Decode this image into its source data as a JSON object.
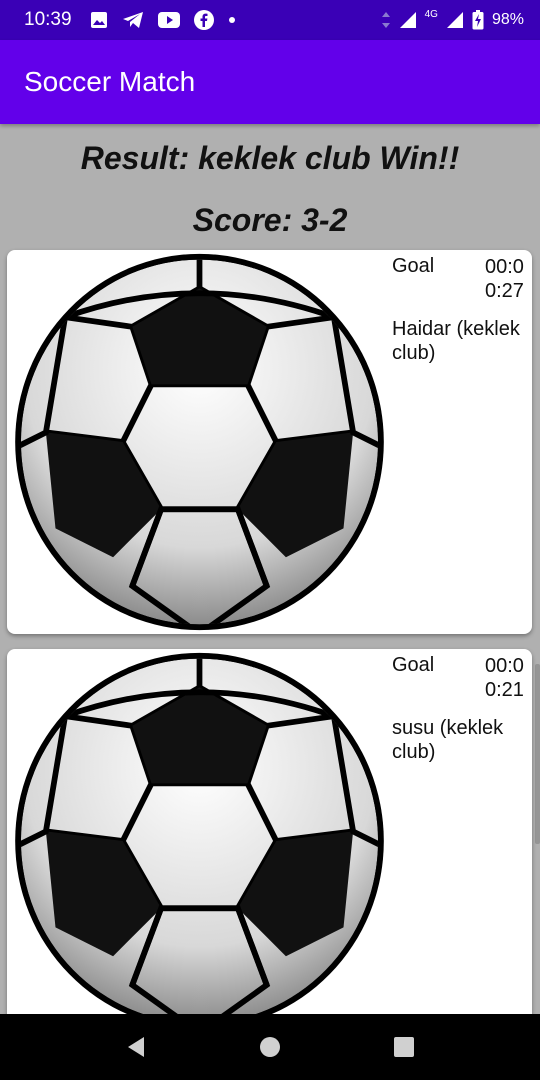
{
  "status_bar": {
    "time": "10:39",
    "network": "4G",
    "battery": "98%",
    "icons": [
      "image-icon",
      "telegram-icon",
      "youtube-icon",
      "facebook-icon",
      "dot-icon",
      "data-arrows-icon",
      "signal-icon",
      "signal-4g-icon",
      "battery-charging-icon"
    ]
  },
  "app_bar": {
    "title": "Soccer Match"
  },
  "summary": {
    "result": "Result: keklek club Win!!",
    "score": "Score: 3-2"
  },
  "events": [
    {
      "type": "Goal",
      "time": "00:00:27",
      "player": "Haidar (keklek club)",
      "icon": "soccer-ball-image"
    },
    {
      "type": "Goal",
      "time": "00:00:21",
      "player": "susu (keklek club)",
      "icon": "soccer-ball-image"
    }
  ],
  "nav_bar": {
    "icons": [
      "back-icon",
      "home-icon",
      "recents-icon"
    ]
  },
  "colors": {
    "status_bar": "#3a00b6",
    "app_bar": "#6200ea",
    "background": "#b0b0b0",
    "card": "#ffffff"
  }
}
